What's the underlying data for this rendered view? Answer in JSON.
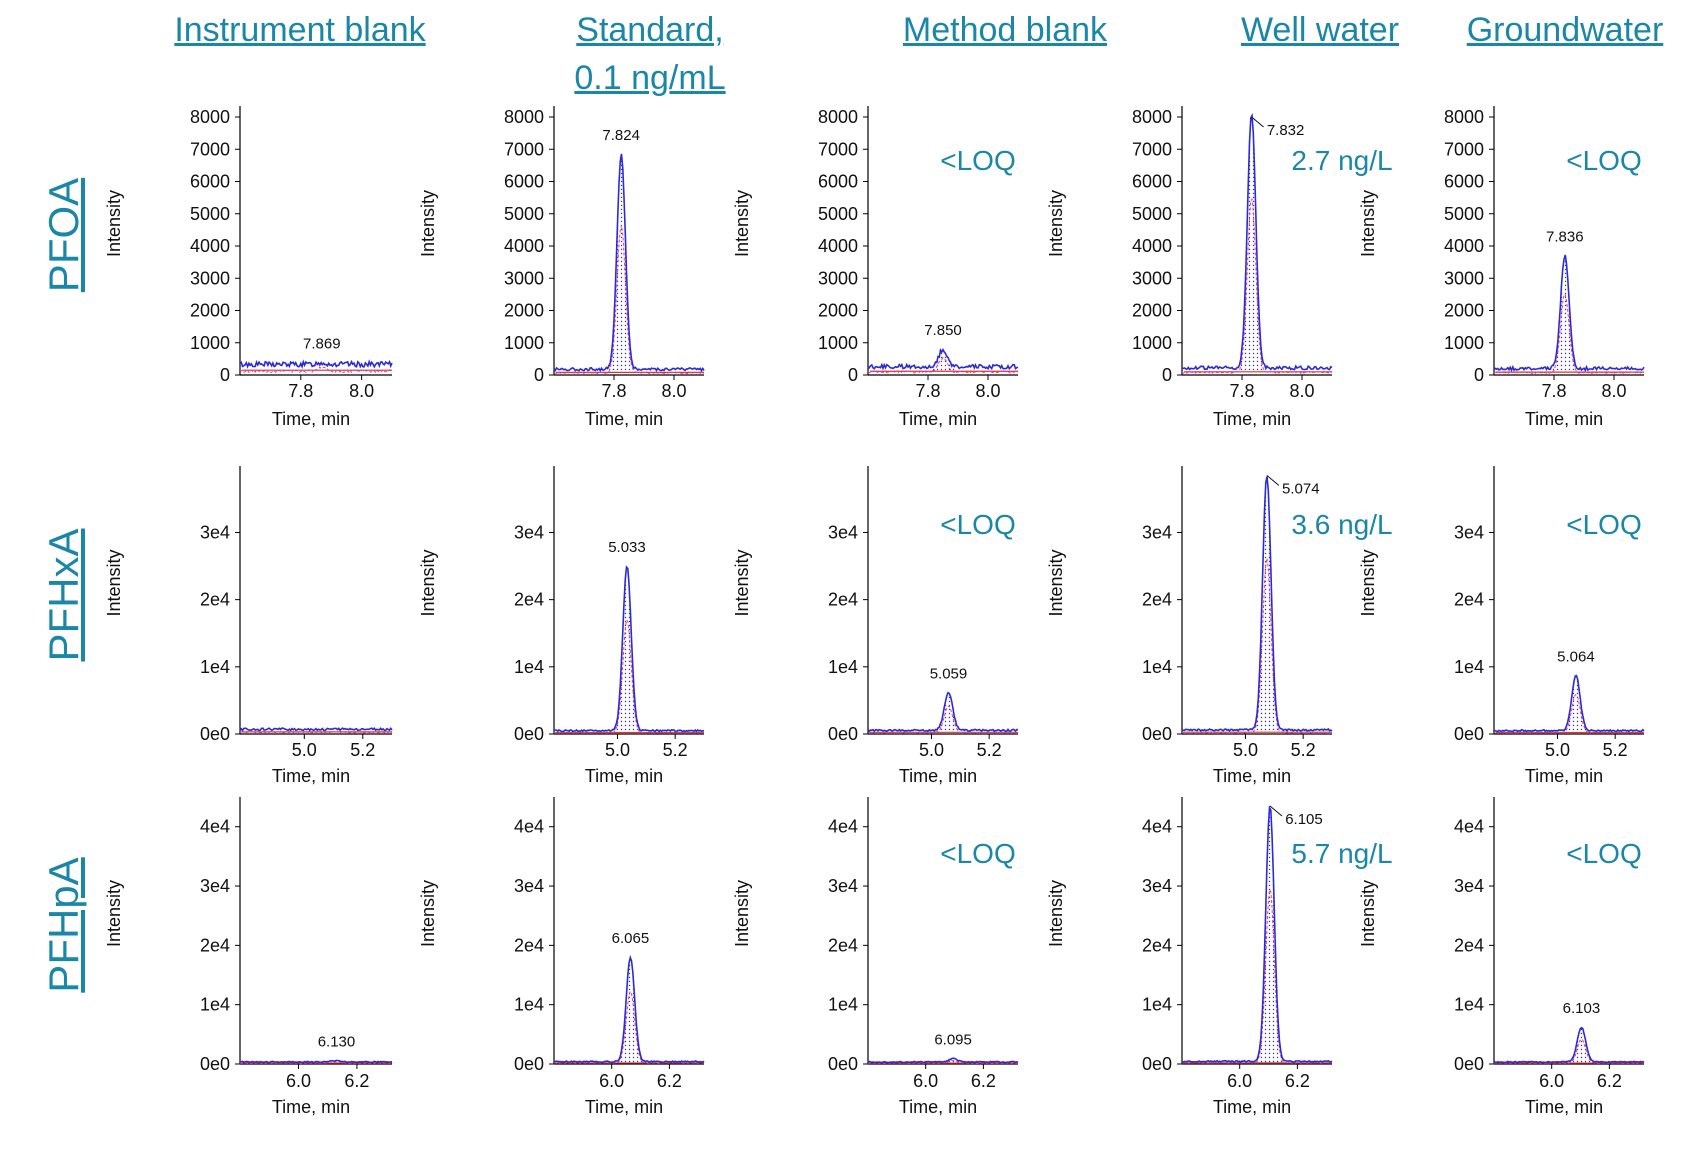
{
  "column_headers": [
    {
      "line1": "Instrument blank",
      "line2": ""
    },
    {
      "line1": "Standard,",
      "line2": "0.1 ng/mL"
    },
    {
      "line1": "Method blank",
      "line2": ""
    },
    {
      "line1": "Well water",
      "line2": ""
    },
    {
      "line1": "Groundwater",
      "line2": ""
    }
  ],
  "row_headers": [
    "PFOA",
    "PFHxA",
    "PFHpA"
  ],
  "colors": {
    "header_text": "#1a86a8",
    "trace": "#2b2bd6",
    "fill_dots": "#2b2bd6",
    "inner_trace": "#e0408a",
    "baseline": "#e03030",
    "axis": "#000000"
  },
  "chart_data": [
    {
      "type": "line",
      "row": "PFOA",
      "column": "Instrument blank",
      "ylabel": "Intensity",
      "xlabel": "Time, min",
      "yticks": [
        "0",
        "1000",
        "2000",
        "3000",
        "4000",
        "5000",
        "6000",
        "7000",
        "8000"
      ],
      "ylim": [
        0,
        8000
      ],
      "xticks": [
        "7.8",
        "8.0"
      ],
      "xlim": [
        7.6,
        8.1
      ],
      "peak": {
        "rt": 7.869,
        "height": 380,
        "label": "7.869"
      },
      "noise": 330,
      "annotation": ""
    },
    {
      "type": "line",
      "row": "PFOA",
      "column": "Standard, 0.1 ng/mL",
      "ylabel": "Intensity",
      "xlabel": "Time, min",
      "yticks": [
        "0",
        "1000",
        "2000",
        "3000",
        "4000",
        "5000",
        "6000",
        "7000",
        "8000"
      ],
      "ylim": [
        0,
        8000
      ],
      "xticks": [
        "7.8",
        "8.0"
      ],
      "xlim": [
        7.6,
        8.1
      ],
      "peak": {
        "rt": 7.824,
        "height": 6850,
        "label": "7.824"
      },
      "noise": 180,
      "annotation": ""
    },
    {
      "type": "line",
      "row": "PFOA",
      "column": "Method blank",
      "ylabel": "Intensity",
      "xlabel": "Time, min",
      "yticks": [
        "0",
        "1000",
        "2000",
        "3000",
        "4000",
        "5000",
        "6000",
        "7000",
        "8000"
      ],
      "ylim": [
        0,
        8000
      ],
      "xticks": [
        "7.8",
        "8.0"
      ],
      "xlim": [
        7.6,
        8.1
      ],
      "peak": {
        "rt": 7.85,
        "height": 800,
        "label": "7.850"
      },
      "noise": 260,
      "annotation": "<LOQ"
    },
    {
      "type": "line",
      "row": "PFOA",
      "column": "Well water",
      "ylabel": "Intensity",
      "xlabel": "Time, min",
      "yticks": [
        "0",
        "1000",
        "2000",
        "3000",
        "4000",
        "5000",
        "6000",
        "7000",
        "8000"
      ],
      "ylim": [
        0,
        8000
      ],
      "xticks": [
        "7.8",
        "8.0"
      ],
      "xlim": [
        7.6,
        8.1
      ],
      "peak": {
        "rt": 7.832,
        "height": 8100,
        "label": "7.832"
      },
      "noise": 220,
      "annotation": "2.7 ng/L"
    },
    {
      "type": "line",
      "row": "PFOA",
      "column": "Groundwater",
      "ylabel": "Intensity",
      "xlabel": "Time, min",
      "yticks": [
        "0",
        "1000",
        "2000",
        "3000",
        "4000",
        "5000",
        "6000",
        "7000",
        "8000"
      ],
      "ylim": [
        0,
        8000
      ],
      "xticks": [
        "7.8",
        "8.0"
      ],
      "xlim": [
        7.6,
        8.1
      ],
      "peak": {
        "rt": 7.836,
        "height": 3700,
        "label": "7.836"
      },
      "noise": 200,
      "annotation": "<LOQ"
    },
    {
      "type": "line",
      "row": "PFHxA",
      "column": "Instrument blank",
      "ylabel": "Intensity",
      "xlabel": "Time, min",
      "yticks": [
        "0e0",
        "1e4",
        "2e4",
        "3e4"
      ],
      "ylim": [
        0,
        39000
      ],
      "xticks": [
        "5.0",
        "5.2"
      ],
      "xlim": [
        4.78,
        5.3
      ],
      "peak": null,
      "noise": 700,
      "annotation": ""
    },
    {
      "type": "line",
      "row": "PFHxA",
      "column": "Standard, 0.1 ng/mL",
      "ylabel": "Intensity",
      "xlabel": "Time, min",
      "yticks": [
        "0e0",
        "1e4",
        "2e4",
        "3e4"
      ],
      "ylim": [
        0,
        39000
      ],
      "xticks": [
        "5.0",
        "5.2"
      ],
      "xlim": [
        4.78,
        5.3
      ],
      "peak": {
        "rt": 5.033,
        "height": 25000,
        "label": "5.033"
      },
      "noise": 500,
      "annotation": ""
    },
    {
      "type": "line",
      "row": "PFHxA",
      "column": "Method blank",
      "ylabel": "Intensity",
      "xlabel": "Time, min",
      "yticks": [
        "0e0",
        "1e4",
        "2e4",
        "3e4"
      ],
      "ylim": [
        0,
        39000
      ],
      "xticks": [
        "5.0",
        "5.2"
      ],
      "xlim": [
        4.78,
        5.3
      ],
      "peak": {
        "rt": 5.059,
        "height": 6200,
        "label": "5.059"
      },
      "noise": 550,
      "annotation": "<LOQ"
    },
    {
      "type": "line",
      "row": "PFHxA",
      "column": "Well water",
      "ylabel": "Intensity",
      "xlabel": "Time, min",
      "yticks": [
        "0e0",
        "1e4",
        "2e4",
        "3e4"
      ],
      "ylim": [
        0,
        39000
      ],
      "xticks": [
        "5.0",
        "5.2"
      ],
      "xlim": [
        4.78,
        5.3
      ],
      "peak": {
        "rt": 5.074,
        "height": 38500,
        "label": "5.074"
      },
      "noise": 600,
      "annotation": "3.6 ng/L"
    },
    {
      "type": "line",
      "row": "PFHxA",
      "column": "Groundwater",
      "ylabel": "Intensity",
      "xlabel": "Time, min",
      "yticks": [
        "0e0",
        "1e4",
        "2e4",
        "3e4"
      ],
      "ylim": [
        0,
        39000
      ],
      "xticks": [
        "5.0",
        "5.2"
      ],
      "xlim": [
        4.78,
        5.3
      ],
      "peak": {
        "rt": 5.064,
        "height": 8700,
        "label": "5.064"
      },
      "noise": 500,
      "annotation": "<LOQ"
    },
    {
      "type": "line",
      "row": "PFHpA",
      "column": "Instrument blank",
      "ylabel": "Intensity",
      "xlabel": "Time, min",
      "yticks": [
        "0e0",
        "1e4",
        "2e4",
        "3e4",
        "4e4"
      ],
      "ylim": [
        0,
        44000
      ],
      "xticks": [
        "6.0",
        "6.2"
      ],
      "xlim": [
        5.8,
        6.32
      ],
      "peak": {
        "rt": 6.13,
        "height": 600,
        "label": "6.130"
      },
      "noise": 350,
      "annotation": ""
    },
    {
      "type": "line",
      "row": "PFHpA",
      "column": "Standard, 0.1 ng/mL",
      "ylabel": "Intensity",
      "xlabel": "Time, min",
      "yticks": [
        "0e0",
        "1e4",
        "2e4",
        "3e4",
        "4e4"
      ],
      "ylim": [
        0,
        44000
      ],
      "xticks": [
        "6.0",
        "6.2"
      ],
      "xlim": [
        5.8,
        6.32
      ],
      "peak": {
        "rt": 6.065,
        "height": 18000,
        "label": "6.065"
      },
      "noise": 400,
      "annotation": ""
    },
    {
      "type": "line",
      "row": "PFHpA",
      "column": "Method blank",
      "ylabel": "Intensity",
      "xlabel": "Time, min",
      "yticks": [
        "0e0",
        "1e4",
        "2e4",
        "3e4",
        "4e4"
      ],
      "ylim": [
        0,
        44000
      ],
      "xticks": [
        "6.0",
        "6.2"
      ],
      "xlim": [
        5.8,
        6.32
      ],
      "peak": {
        "rt": 6.095,
        "height": 900,
        "label": "6.095"
      },
      "noise": 350,
      "annotation": "<LOQ"
    },
    {
      "type": "line",
      "row": "PFHpA",
      "column": "Well water",
      "ylabel": "Intensity",
      "xlabel": "Time, min",
      "yticks": [
        "0e0",
        "1e4",
        "2e4",
        "3e4",
        "4e4"
      ],
      "ylim": [
        0,
        44000
      ],
      "xticks": [
        "6.0",
        "6.2"
      ],
      "xlim": [
        5.8,
        6.32
      ],
      "peak": {
        "rt": 6.105,
        "height": 43500,
        "label": "6.105"
      },
      "noise": 450,
      "annotation": "5.7 ng/L"
    },
    {
      "type": "line",
      "row": "PFHpA",
      "column": "Groundwater",
      "ylabel": "Intensity",
      "xlabel": "Time, min",
      "yticks": [
        "0e0",
        "1e4",
        "2e4",
        "3e4",
        "4e4"
      ],
      "ylim": [
        0,
        44000
      ],
      "xticks": [
        "6.0",
        "6.2"
      ],
      "xlim": [
        5.8,
        6.32
      ],
      "peak": {
        "rt": 6.103,
        "height": 6200,
        "label": "6.103"
      },
      "noise": 350,
      "annotation": "<LOQ"
    }
  ]
}
